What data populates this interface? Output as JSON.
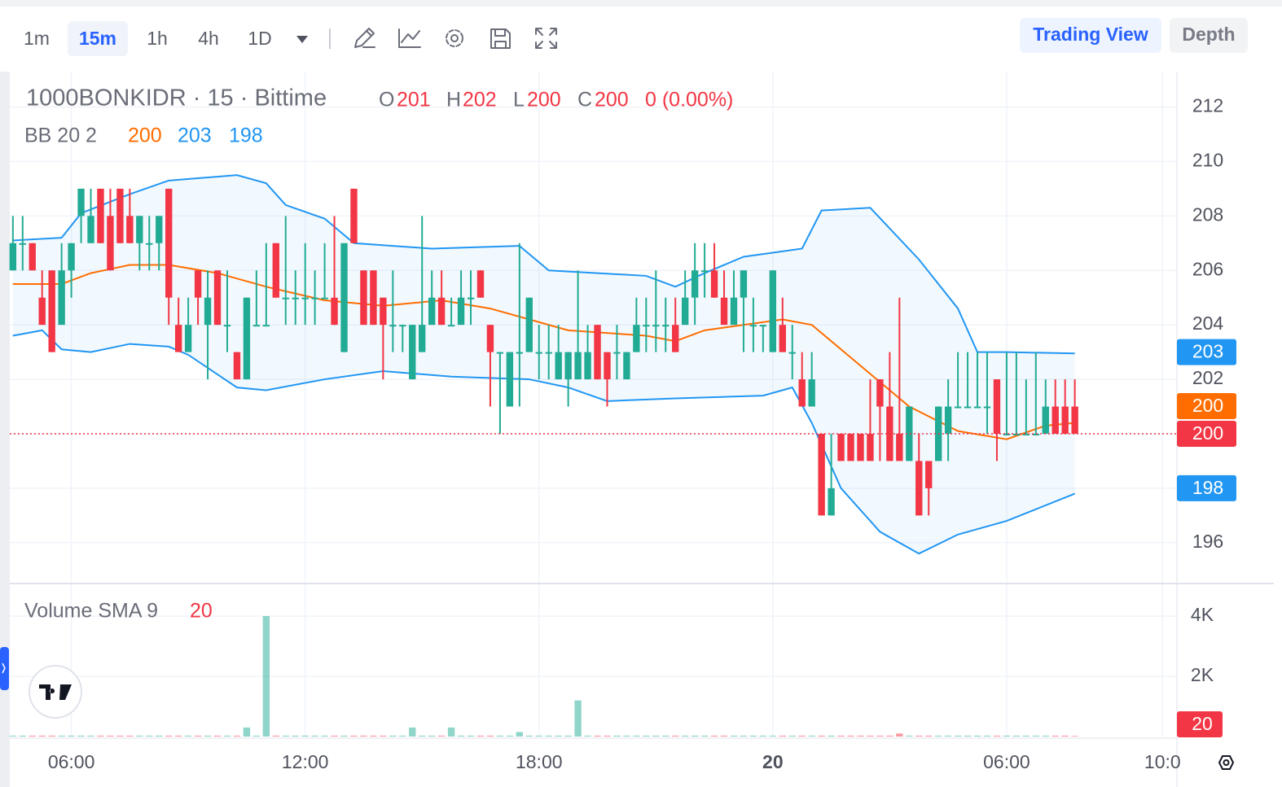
{
  "toolbar": {
    "intervals": [
      "1m",
      "15m",
      "1h",
      "4h",
      "1D"
    ],
    "active_interval": 1,
    "views": [
      "Trading View",
      "Depth"
    ],
    "active_view": 0
  },
  "chart_data": {
    "type": "candlestick",
    "title": "1000BONKIDR · 15 · Bittime",
    "ohlc_legend": [
      {
        "key": "O",
        "value": 201
      },
      {
        "key": "H",
        "value": 202
      },
      {
        "key": "L",
        "value": 200
      },
      {
        "key": "C",
        "value": 200
      }
    ],
    "change": "0 (0.00%)",
    "up_color": "#22ab94",
    "down_color": "#f23645",
    "x": [
      4.5,
      4.75,
      5,
      5.25,
      5.5,
      5.75,
      6,
      6.25,
      6.5,
      6.75,
      7,
      7.25,
      7.5,
      7.75,
      8,
      8.25,
      8.5,
      8.75,
      9,
      9.25,
      9.5,
      9.75,
      10,
      10.25,
      10.5,
      10.75,
      11,
      11.25,
      11.5,
      11.75,
      12,
      12.25,
      12.5,
      12.75,
      13,
      13.25,
      13.5,
      13.75,
      14,
      14.25,
      14.5,
      14.75,
      15,
      15.25,
      15.5,
      15.75,
      16,
      16.25,
      16.5,
      16.75,
      17,
      17.25,
      17.5,
      17.75,
      18,
      18.25,
      18.5,
      18.75,
      19,
      19.25,
      19.5,
      19.75,
      20,
      20.25,
      20.5,
      20.75,
      21,
      21.25,
      21.5,
      21.75,
      22,
      22.25,
      22.5,
      22.75,
      23,
      23.25,
      23.5,
      23.75,
      24,
      24.25,
      24.5,
      24.75,
      25,
      25.25,
      25.5,
      25.75,
      26,
      26.25,
      26.5,
      26.75,
      27,
      27.25,
      27.5,
      27.75,
      28,
      28.25,
      28.5,
      28.75,
      29,
      29.25,
      29.5,
      29.75,
      30,
      30.25,
      30.5,
      30.75,
      31,
      31.25,
      31.5,
      31.75
    ],
    "open": [
      206,
      207,
      207,
      205,
      206,
      204,
      206,
      208,
      207,
      209,
      208,
      209,
      208,
      207,
      207,
      207,
      209,
      204,
      203,
      206,
      204,
      206,
      204,
      203,
      202,
      204,
      204,
      207,
      205,
      205,
      205,
      205,
      205,
      205,
      203,
      209,
      206,
      206,
      205,
      204,
      204,
      202,
      203,
      204,
      205,
      204,
      204,
      205,
      206,
      204,
      203,
      201,
      203,
      203,
      203,
      203,
      202,
      202,
      202,
      202,
      204,
      203,
      203,
      202,
      203,
      204,
      204,
      204,
      204,
      204,
      205,
      206,
      206,
      205,
      204,
      205,
      204,
      204,
      203,
      204,
      203,
      202,
      201,
      200,
      197,
      200,
      200,
      200,
      200,
      202,
      201,
      200,
      199,
      199,
      199,
      199,
      200,
      201,
      201,
      201,
      201,
      202,
      200,
      200,
      200,
      200,
      200,
      201,
      201,
      201
    ],
    "high": [
      208,
      208,
      207,
      206,
      206,
      207,
      207,
      209,
      209,
      209,
      209,
      209,
      209,
      208,
      208,
      208,
      209,
      205,
      205,
      206,
      206,
      206,
      206,
      203,
      205,
      206,
      207,
      207,
      208,
      206,
      207,
      206,
      207,
      208,
      207,
      209,
      206,
      206,
      205,
      206,
      204,
      204,
      208,
      206,
      206,
      205,
      206,
      206,
      206,
      204,
      203,
      203,
      207,
      205,
      204,
      204,
      204,
      203,
      206,
      204,
      204,
      203,
      204,
      203,
      205,
      205,
      206,
      205,
      205,
      206,
      207,
      207,
      207,
      206,
      206,
      206,
      205,
      204,
      206,
      205,
      204,
      203,
      203,
      200,
      200,
      200,
      200,
      200,
      202,
      202,
      203,
      205,
      201,
      200,
      199,
      201,
      202,
      203,
      203,
      203,
      203,
      202,
      203,
      203,
      202,
      203,
      202,
      202,
      202,
      202
    ],
    "low": [
      206,
      206,
      206,
      204,
      203,
      204,
      205,
      207,
      207,
      207,
      206,
      207,
      207,
      206,
      206,
      206,
      204,
      203,
      203,
      204,
      202,
      204,
      203,
      202,
      202,
      204,
      204,
      205,
      204,
      204,
      204,
      204,
      205,
      204,
      203,
      207,
      204,
      204,
      202,
      203,
      203,
      202,
      203,
      204,
      204,
      204,
      204,
      204,
      205,
      201,
      200,
      201,
      201,
      203,
      202,
      202,
      202,
      201,
      202,
      202,
      202,
      201,
      202,
      202,
      203,
      203,
      203,
      203,
      203,
      204,
      204,
      205,
      205,
      204,
      204,
      203,
      203,
      203,
      203,
      203,
      202,
      201,
      201,
      197,
      197,
      199,
      199,
      199,
      199,
      199,
      199,
      199,
      199,
      197,
      197,
      199,
      199,
      201,
      201,
      201,
      200,
      199,
      200,
      200,
      200,
      200,
      200,
      200,
      200,
      200
    ],
    "close": [
      207,
      207,
      206,
      204,
      203,
      206,
      207,
      209,
      208,
      207,
      206,
      207,
      207,
      208,
      207,
      208,
      205,
      203,
      204,
      205,
      205,
      204,
      204,
      202,
      205,
      204,
      204,
      205,
      205,
      205,
      205,
      205,
      205,
      204,
      207,
      207,
      204,
      204,
      204,
      204,
      204,
      204,
      204,
      205,
      204,
      204,
      205,
      205,
      205,
      203,
      203,
      203,
      203,
      205,
      203,
      203,
      203,
      203,
      203,
      203,
      202,
      202,
      203,
      203,
      204,
      204,
      204,
      204,
      203,
      205,
      206,
      206,
      205,
      204,
      205,
      206,
      204,
      204,
      206,
      203,
      203,
      201,
      202,
      197,
      198,
      199,
      199,
      199,
      199,
      201,
      199,
      199,
      201,
      197,
      198,
      201,
      201,
      201,
      201,
      201,
      201,
      200,
      200,
      200,
      200,
      200,
      201,
      200,
      200,
      200
    ],
    "xlim": [
      4.42,
      34.37
    ],
    "xticks": [
      {
        "value": 6,
        "label": "06:00"
      },
      {
        "value": 12,
        "label": "12:00"
      },
      {
        "value": 18,
        "label": "18:00"
      },
      {
        "value": 24,
        "label": "20"
      },
      {
        "value": 30,
        "label": "06:00"
      },
      {
        "value": 34,
        "label": "10:0"
      }
    ],
    "ylim": [
      194.5,
      213.3
    ],
    "yticks": [
      196,
      198,
      200,
      202,
      204,
      206,
      208,
      210,
      212
    ],
    "grid": true,
    "bb": {
      "label": "BB 20 2",
      "legend_values": [
        {
          "value": 200,
          "color": "#ff6d00"
        },
        {
          "value": 203,
          "color": "#2196f3"
        },
        {
          "value": 198,
          "color": "#2196f3"
        }
      ],
      "bands": [
        {
          "color": "#2196f3",
          "x": [
            4.5,
            5.75,
            6.25,
            7.5,
            8.5,
            10.25,
            11,
            11.5,
            12.5,
            13.25,
            15.25,
            17.5,
            18.25,
            20.75,
            21.5,
            22.25,
            23.25,
            24.75,
            25.25,
            26.5,
            27.75,
            28.75,
            29.25,
            30,
            31.75
          ],
          "values": [
            207.1,
            207.2,
            208.1,
            208.8,
            209.3,
            209.5,
            209.2,
            208.4,
            207.9,
            207.0,
            206.8,
            206.9,
            206.0,
            205.8,
            205.4,
            205.9,
            206.5,
            206.8,
            208.2,
            208.3,
            206.4,
            204.6,
            203.0,
            203.0,
            202.95
          ]
        },
        {
          "color": "#ff6d00",
          "x": [
            4.5,
            5.75,
            6.5,
            7.5,
            8.5,
            9.75,
            11,
            12.5,
            14,
            15.5,
            16.75,
            18.75,
            20.75,
            21.5,
            22.25,
            24.25,
            25,
            26.25,
            27.5,
            28.75,
            30,
            31,
            31.75
          ],
          "values": [
            205.5,
            205.5,
            205.9,
            206.2,
            206.2,
            205.9,
            205.4,
            204.9,
            204.7,
            204.9,
            204.6,
            203.8,
            203.6,
            203.4,
            203.8,
            204.2,
            204.0,
            202.5,
            201.0,
            200.1,
            199.8,
            200.3,
            200.4
          ]
        },
        {
          "color": "#2196f3",
          "x": [
            4.5,
            5.25,
            5.75,
            6.5,
            7.5,
            8.5,
            9,
            10.25,
            11,
            12.5,
            14,
            15.75,
            17.75,
            18.75,
            19.75,
            21.5,
            23.75,
            24.5,
            25,
            25.75,
            26.75,
            27.75,
            28.75,
            30,
            31.75
          ],
          "values": [
            203.6,
            203.8,
            203.1,
            203.0,
            203.3,
            203.2,
            202.9,
            201.7,
            201.6,
            202.0,
            202.3,
            202.1,
            202.0,
            201.7,
            201.2,
            201.3,
            201.4,
            201.7,
            200.4,
            198.0,
            196.4,
            195.6,
            196.3,
            196.8,
            197.8
          ]
        }
      ]
    },
    "price_labels": [
      {
        "value": 203,
        "color": "#2196f3"
      },
      {
        "value": 200,
        "color": "#ff6d00"
      },
      {
        "value": 200,
        "color": "#f23645"
      },
      {
        "value": 198,
        "color": "#2196f3"
      }
    ],
    "volume": {
      "label": "Volume SMA 9",
      "value": 20,
      "values": [
        30,
        30,
        30,
        30,
        30,
        30,
        30,
        30,
        30,
        30,
        30,
        30,
        30,
        30,
        30,
        30,
        30,
        30,
        30,
        30,
        30,
        30,
        30,
        30,
        300,
        30,
        4000,
        30,
        30,
        30,
        30,
        30,
        30,
        30,
        30,
        30,
        30,
        30,
        30,
        30,
        30,
        300,
        30,
        30,
        30,
        300,
        30,
        30,
        30,
        30,
        30,
        30,
        150,
        30,
        30,
        30,
        30,
        30,
        1200,
        30,
        30,
        30,
        30,
        30,
        30,
        30,
        30,
        30,
        30,
        30,
        30,
        30,
        30,
        30,
        30,
        30,
        30,
        30,
        30,
        30,
        30,
        30,
        30,
        30,
        30,
        30,
        30,
        30,
        30,
        30,
        30,
        100,
        30,
        30,
        30,
        30,
        30,
        30,
        30,
        30,
        30,
        30,
        30,
        30,
        30,
        30,
        30,
        30,
        30,
        20
      ],
      "ylim": [
        0,
        5054
      ],
      "yticks": [
        {
          "value": 2000,
          "label": "2K"
        },
        {
          "value": 4000,
          "label": "4K"
        }
      ]
    }
  }
}
